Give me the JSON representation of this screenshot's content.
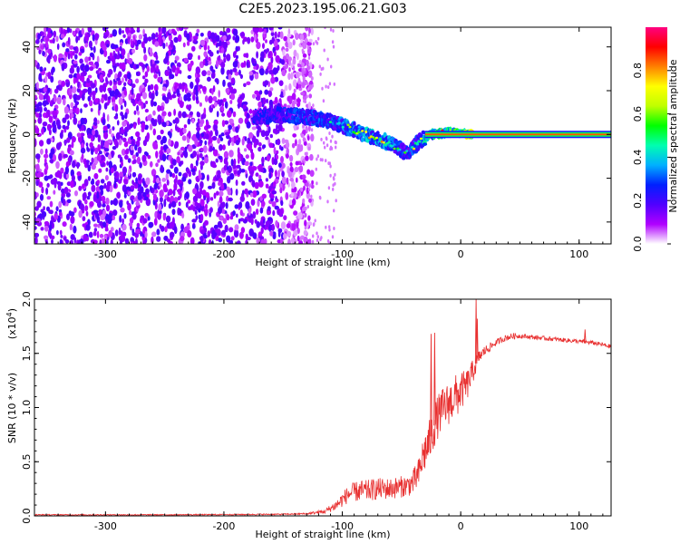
{
  "figure": {
    "title": "C2E5.2023.195.06.21.G03"
  },
  "chart_data": [
    {
      "type": "heatmap",
      "xlabel": "Height of straight line (km)",
      "ylabel": "Frequency (Hz)",
      "xlim": [
        -360,
        127
      ],
      "ylim": [
        -50,
        49
      ],
      "xticks": [
        -300,
        -200,
        -100,
        0,
        100
      ],
      "yticks": [
        -40,
        -20,
        0,
        20,
        40
      ],
      "grid": false,
      "colorbar": {
        "label": "Normalized spectral amplitude",
        "range": [
          0,
          1
        ],
        "ticks": [
          "0.0",
          "0.2",
          "0.4",
          "0.6",
          "0.8"
        ],
        "tick_values": [
          0.0,
          0.2,
          0.4,
          0.6,
          0.8
        ],
        "colors": [
          "#ffffff",
          "#b000ff",
          "#5000ff",
          "#0020ff",
          "#00b0ff",
          "#00ffb0",
          "#00ff00",
          "#c0ff00",
          "#ffff00",
          "#ff8000",
          "#ff0000",
          "#ff0080"
        ]
      },
      "features": {
        "noise_region_x": [
          -360,
          -135
        ],
        "noise_dot_amplitude_range": [
          0.05,
          0.2
        ],
        "track": [
          {
            "x": -175,
            "y": 8,
            "amp": 0.28
          },
          {
            "x": -150,
            "y": 9,
            "amp": 0.3
          },
          {
            "x": -130,
            "y": 8,
            "amp": 0.35
          },
          {
            "x": -110,
            "y": 6,
            "amp": 0.35
          },
          {
            "x": -95,
            "y": 3,
            "amp": 0.4
          },
          {
            "x": -80,
            "y": 0,
            "amp": 0.45
          },
          {
            "x": -65,
            "y": -3,
            "amp": 0.45
          },
          {
            "x": -50,
            "y": -7,
            "amp": 0.35
          },
          {
            "x": -45,
            "y": -9,
            "amp": 0.3
          },
          {
            "x": -35,
            "y": -3,
            "amp": 0.4
          },
          {
            "x": -25,
            "y": 0,
            "amp": 0.6
          },
          {
            "x": -10,
            "y": 1,
            "amp": 0.7
          },
          {
            "x": 10,
            "y": 0,
            "amp": 0.85
          }
        ],
        "carrier_line": {
          "x_start": -30,
          "x_end": 127,
          "y": 0,
          "amp": 0.85
        }
      }
    },
    {
      "type": "line",
      "xlabel": "Height of straight line (km)",
      "ylabel": "SNR (10 * v/v)",
      "y_multiplier": "(x10",
      "y_multiplier_exp": "4",
      "xlim": [
        -360,
        127
      ],
      "ylim": [
        0,
        2.0
      ],
      "xticks": [
        -300,
        -200,
        -100,
        0,
        100
      ],
      "yticks": [
        "0.0",
        "0.5",
        "1.0",
        "1.5",
        "2.0"
      ],
      "ytick_values": [
        0,
        0.5,
        1.0,
        1.5,
        2.0
      ],
      "grid": false,
      "series": [
        {
          "color": "#e83030",
          "x": [
            -360,
            -300,
            -250,
            -200,
            -150,
            -130,
            -115,
            -105,
            -100,
            -95,
            -90,
            -85,
            -80,
            -75,
            -70,
            -65,
            -60,
            -55,
            -50,
            -45,
            -40,
            -35,
            -32,
            -29,
            -26,
            -23,
            -20,
            -17,
            -14,
            -11,
            -8,
            -5,
            -2,
            0,
            3,
            6,
            9,
            12,
            15,
            20,
            25,
            30,
            35,
            40,
            45,
            50,
            60,
            70,
            80,
            90,
            100,
            110,
            120,
            127
          ],
          "y": [
            0.01,
            0.01,
            0.01,
            0.012,
            0.015,
            0.02,
            0.04,
            0.1,
            0.15,
            0.2,
            0.22,
            0.23,
            0.23,
            0.24,
            0.25,
            0.25,
            0.25,
            0.26,
            0.27,
            0.28,
            0.31,
            0.4,
            0.55,
            0.62,
            0.7,
            0.8,
            0.9,
            0.96,
            1.0,
            1.03,
            1.06,
            1.1,
            1.12,
            1.15,
            1.18,
            1.22,
            1.3,
            1.38,
            1.46,
            1.52,
            1.56,
            1.6,
            1.63,
            1.65,
            1.66,
            1.66,
            1.65,
            1.64,
            1.63,
            1.62,
            1.61,
            1.6,
            1.58,
            1.56
          ],
          "noise_amplitude": [
            0.005,
            0.005,
            0.005,
            0.005,
            0.006,
            0.008,
            0.02,
            0.05,
            0.07,
            0.08,
            0.09,
            0.1,
            0.1,
            0.1,
            0.1,
            0.1,
            0.1,
            0.1,
            0.1,
            0.1,
            0.12,
            0.15,
            0.18,
            0.2,
            0.2,
            0.2,
            0.2,
            0.2,
            0.2,
            0.2,
            0.2,
            0.2,
            0.2,
            0.18,
            0.16,
            0.14,
            0.12,
            0.1,
            0.06,
            0.05,
            0.04,
            0.03,
            0.03,
            0.03,
            0.03,
            0.02,
            0.02,
            0.02,
            0.02,
            0.02,
            0.02,
            0.02,
            0.02,
            0.02
          ],
          "spikes": [
            {
              "x": -25,
              "y": 1.68
            },
            {
              "x": -22,
              "y": 1.69
            },
            {
              "x": 13,
              "y": 2.0
            },
            {
              "x": 14,
              "y": 1.82
            },
            {
              "x": 105,
              "y": 1.72
            }
          ]
        }
      ]
    }
  ]
}
